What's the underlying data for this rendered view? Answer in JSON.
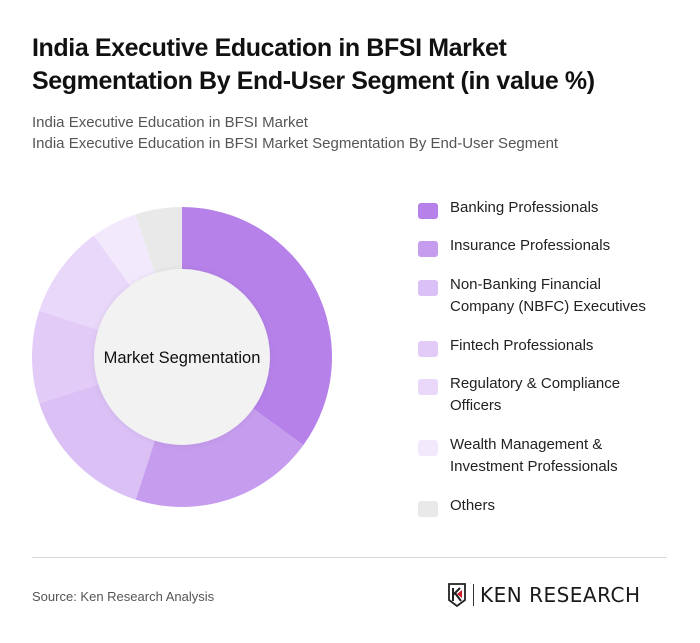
{
  "header": {
    "title": "India Executive Education in BFSI Market Segmentation By End-User Segment (in value %)",
    "subtitle_line1": "India Executive Education in BFSI Market",
    "subtitle_line2": "India Executive Education in BFSI Market Segmentation By End-User Segment"
  },
  "chart": {
    "center_label": "Market Segmentation"
  },
  "legend": {
    "items": [
      {
        "label": "Banking Professionals",
        "color": "#b682ea"
      },
      {
        "label": "Insurance Professionals",
        "color": "#c69cee"
      },
      {
        "label": "Non-Banking Financial Company (NBFC) Executives",
        "color": "#dac0f5"
      },
      {
        "label": "Fintech Professionals",
        "color": "#e2cbf7"
      },
      {
        "label": "Regulatory & Compliance Officers",
        "color": "#e9d8f9"
      },
      {
        "label": "Wealth Management & Investment Professionals",
        "color": "#f2eafc"
      },
      {
        "label": "Others",
        "color": "#e9e9e9"
      }
    ]
  },
  "footer": {
    "source": "Source: Ken Research Analysis",
    "brand": "KEN RESEARCH"
  },
  "chart_data": {
    "type": "pie",
    "subtype": "donut",
    "title": "India Executive Education in BFSI Market Segmentation By End-User Segment (in value %)",
    "subtitle": "India Executive Education in BFSI Market Segmentation By End-User Segment",
    "center_label": "Market Segmentation",
    "categories": [
      "Banking Professionals",
      "Insurance Professionals",
      "Non-Banking Financial Company (NBFC) Executives",
      "Fintech Professionals",
      "Regulatory & Compliance Officers",
      "Wealth Management & Investment Professionals",
      "Others"
    ],
    "values": [
      35,
      20,
      15,
      10,
      10,
      5,
      5
    ],
    "colors": [
      "#b682ea",
      "#c69cee",
      "#dac0f5",
      "#e2cbf7",
      "#e9d8f9",
      "#f2eafc",
      "#e9e9e9"
    ],
    "unit": "%",
    "legend_position": "right",
    "source": "Source: Ken Research Analysis"
  }
}
